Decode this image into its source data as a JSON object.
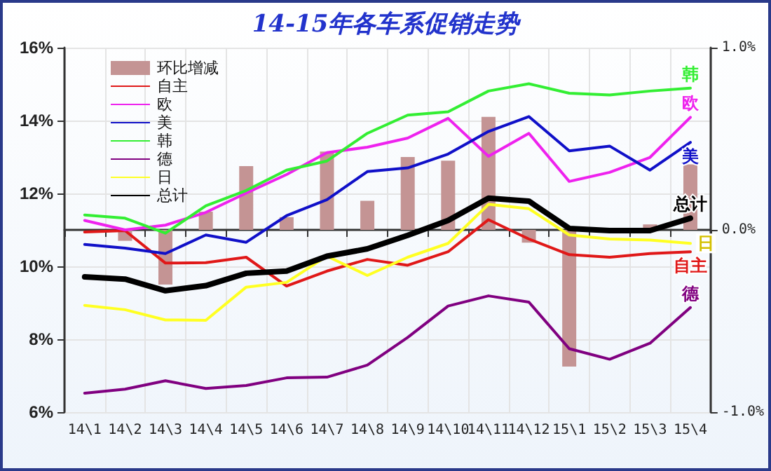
{
  "chart_data": {
    "type": "line",
    "title": "14-15年各车系促销走势",
    "categories": [
      "14\\1",
      "14\\2",
      "14\\3",
      "14\\4",
      "14\\5",
      "14\\6",
      "14\\7",
      "14\\8",
      "14\\9",
      "14\\10",
      "14\\11",
      "14\\12",
      "15\\1",
      "15\\2",
      "15\\3",
      "15\\4"
    ],
    "series": [
      {
        "name": "环比增减",
        "type": "bar",
        "axis": "y2",
        "color": "#c49494",
        "values": [
          null,
          -0.06,
          -0.3,
          0.1,
          0.35,
          0.07,
          0.43,
          0.16,
          0.4,
          0.38,
          0.62,
          -0.07,
          -0.75,
          null,
          0.03,
          0.36
        ]
      },
      {
        "name": "自主",
        "color": "#e01818",
        "values": [
          10.94,
          10.98,
          10.09,
          10.1,
          10.25,
          9.46,
          9.87,
          10.19,
          10.03,
          10.4,
          11.28,
          10.75,
          10.32,
          10.25,
          10.35,
          10.4
        ]
      },
      {
        "name": "欧",
        "color": "#ee22ee",
        "values": [
          11.26,
          11.0,
          11.13,
          11.48,
          12.01,
          12.52,
          13.12,
          13.27,
          13.52,
          14.06,
          13.02,
          13.65,
          12.33,
          12.58,
          12.99,
          14.09
        ]
      },
      {
        "name": "美",
        "color": "#1010c8",
        "values": [
          10.6,
          10.5,
          10.35,
          10.86,
          10.66,
          11.39,
          11.83,
          12.6,
          12.7,
          13.08,
          13.7,
          14.11,
          13.17,
          13.3,
          12.64,
          13.4
        ]
      },
      {
        "name": "韩",
        "color": "#33ee33",
        "values": [
          11.41,
          11.32,
          10.91,
          11.66,
          12.08,
          12.64,
          12.89,
          13.65,
          14.15,
          14.24,
          14.81,
          15.01,
          14.75,
          14.7,
          14.81,
          14.89
        ]
      },
      {
        "name": "德",
        "color": "#800080",
        "values": [
          6.52,
          6.63,
          6.86,
          6.65,
          6.73,
          6.94,
          6.96,
          7.29,
          8.05,
          8.91,
          9.19,
          9.02,
          7.74,
          7.45,
          7.89,
          8.87
        ]
      },
      {
        "name": "日",
        "color": "#ffff22",
        "values": [
          8.93,
          8.81,
          8.53,
          8.52,
          9.43,
          9.56,
          10.28,
          9.75,
          10.25,
          10.63,
          11.7,
          11.58,
          10.86,
          10.75,
          10.72,
          10.63
        ]
      },
      {
        "name": "总计",
        "color": "#000000",
        "values": [
          9.71,
          9.65,
          9.33,
          9.47,
          9.81,
          9.87,
          10.28,
          10.48,
          10.85,
          11.26,
          11.87,
          11.79,
          11.04,
          10.98,
          10.98,
          11.32
        ]
      }
    ],
    "ylim": [
      6,
      16
    ],
    "yticks": [
      {
        "value": 6,
        "label": "6%"
      },
      {
        "value": 8,
        "label": "8%"
      },
      {
        "value": 10,
        "label": "10%"
      },
      {
        "value": 12,
        "label": "12%"
      },
      {
        "value": 14,
        "label": "14%"
      },
      {
        "value": 16,
        "label": "16%"
      }
    ],
    "y2lim": [
      -1,
      1
    ],
    "y2ticks": [
      {
        "value": -1,
        "label": "-1.0%"
      },
      {
        "value": 0,
        "label": "0.0%"
      },
      {
        "value": 1,
        "label": "1.0%"
      }
    ],
    "grid": true,
    "legend": "top left",
    "marker": "none",
    "line_style": "solid"
  }
}
